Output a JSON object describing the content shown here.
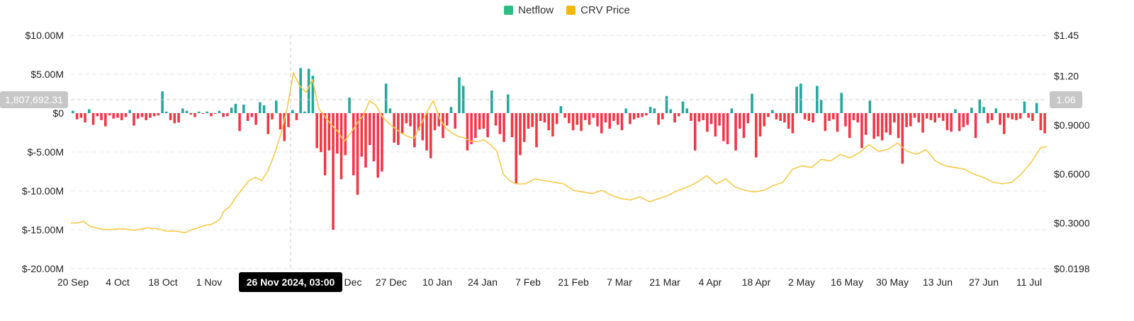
{
  "legend": {
    "netflow_label": "Netflow",
    "price_label": "CRV Price"
  },
  "colors": {
    "positive": "#26a69a",
    "negative": "#f23645",
    "price": "#f7c948",
    "legend_netflow": "#2ebd85",
    "legend_price": "#f0b90b",
    "grid": "#e6e6e6",
    "crosshair": "#c8c8c8"
  },
  "crosshair": {
    "date_label": "26 Nov 2024, 03:00",
    "left_value": "1,807,692.31",
    "right_value": "1.06"
  },
  "chart_data": {
    "type": "bar+line",
    "series": [
      {
        "name": "Netflow",
        "type": "bar",
        "unit": "USD",
        "x_start": "2024-09-20",
        "x_end": "2025-07-14",
        "values": [
          0.3,
          -0.8,
          -0.6,
          -1.2,
          0.5,
          -1.5,
          -0.4,
          -0.9,
          -1.7,
          -0.3,
          -0.7,
          -0.6,
          -0.9,
          -0.5,
          0.4,
          -1.6,
          -0.7,
          -0.5,
          -0.9,
          -0.6,
          -0.4,
          -0.3,
          2.8,
          0.2,
          -0.9,
          -1.3,
          -1.2,
          0.6,
          0.3,
          -0.2,
          -0.5,
          0.2,
          -0.1,
          0.2,
          -0.4,
          -0.1,
          0.3,
          -0.5,
          -0.4,
          0.7,
          1.2,
          -2.3,
          1.1,
          -1.0,
          -0.5,
          -1.5,
          1.4,
          1.0,
          -2.7,
          -0.8,
          1.6,
          -2.1,
          -3.6,
          -1.8,
          0.4,
          -0.9,
          5.8,
          0.2,
          5.7,
          4.8,
          -4.5,
          -5.0,
          -8.0,
          -4.8,
          -15.0,
          -5.2,
          -8.5,
          -5.4,
          2.0,
          -8.0,
          -10.5,
          -5.6,
          -7.0,
          -4.1,
          -6.2,
          -8.3,
          -7.5,
          3.8,
          0.6,
          -3.8,
          -4.1,
          -2.6,
          -1.3,
          -1.7,
          -4.4,
          -2.2,
          -3.5,
          -4.8,
          -5.8,
          -2.2,
          -1.7,
          -3.2,
          -1.6,
          0.8,
          -2.0,
          4.6,
          3.5,
          -4.8,
          -4.0,
          -3.2,
          -2.1,
          -2.0,
          -3.1,
          2.9,
          -1.6,
          -2.7,
          -3.7,
          2.4,
          -3.1,
          -9.0,
          -5.4,
          -3.7,
          -2.0,
          -1.8,
          -4.4,
          -1.0,
          -1.2,
          -2.2,
          -3.0,
          -1.4,
          0.9,
          -0.6,
          -1.3,
          -2.2,
          -1.5,
          -2.3,
          -0.9,
          -1.5,
          -0.6,
          -1.7,
          -2.6,
          -1.2,
          -2.0,
          -1.0,
          -1.5,
          -2.2,
          0.6,
          -1.4,
          -0.8,
          -0.6,
          -0.5,
          -0.3,
          0.8,
          0.6,
          -1.5,
          -0.8,
          2.2,
          0.5,
          -1.2,
          -0.4,
          1.5,
          0.6,
          -1.0,
          -4.8,
          -1.1,
          -0.9,
          -2.4,
          -1.4,
          -3.0,
          -1.6,
          -3.6,
          -4.0,
          0.6,
          -4.8,
          -2.0,
          -3.2,
          -1.3,
          2.5,
          -5.7,
          -3.0,
          -1.7,
          -0.5,
          0.4,
          -0.8,
          -1.0,
          -1.2,
          -2.0,
          -2.6,
          3.4,
          3.8,
          -0.8,
          -1.0,
          -1.2,
          3.5,
          1.7,
          -2.3,
          -1.0,
          -0.8,
          -2.4,
          2.6,
          -1.7,
          -3.2,
          -0.9,
          -1.2,
          -4.5,
          -2.8,
          1.6,
          -3.3,
          -3.0,
          -3.5,
          -2.5,
          -2.8,
          -1.2,
          -3.2,
          -6.5,
          -1.8,
          -1.7,
          -0.6,
          -1.2,
          -2.5,
          -0.7,
          -0.9,
          -1.2,
          -0.6,
          -1.0,
          -2.2,
          -2.4,
          0.5,
          -2.3,
          -1.8,
          -1.5,
          0.7,
          -3.2,
          1.8,
          0.8,
          -1.3,
          -0.9,
          0.6,
          -1.5,
          -2.7,
          -0.6,
          -0.8,
          -0.9,
          -0.7,
          1.5,
          -0.6,
          -1.0,
          1.3,
          -2.2,
          -2.6
        ]
      },
      {
        "name": "CRV Price",
        "type": "line",
        "unit": "USD",
        "x_start": "2024-09-20",
        "x_end": "2025-07-14",
        "points": [
          [
            0,
            0.3
          ],
          [
            2,
            0.3
          ],
          [
            4,
            0.31
          ],
          [
            6,
            0.28
          ],
          [
            8,
            0.27
          ],
          [
            10,
            0.26
          ],
          [
            13,
            0.26
          ],
          [
            16,
            0.265
          ],
          [
            20,
            0.255
          ],
          [
            24,
            0.27
          ],
          [
            27,
            0.265
          ],
          [
            30,
            0.25
          ],
          [
            33,
            0.25
          ],
          [
            36,
            0.24
          ],
          [
            38,
            0.26
          ],
          [
            40,
            0.27
          ],
          [
            42,
            0.285
          ],
          [
            44,
            0.29
          ],
          [
            46,
            0.31
          ],
          [
            47,
            0.325
          ],
          [
            48,
            0.37
          ],
          [
            50,
            0.4
          ],
          [
            52,
            0.46
          ],
          [
            54,
            0.51
          ],
          [
            56,
            0.56
          ],
          [
            58,
            0.58
          ],
          [
            60,
            0.56
          ],
          [
            62,
            0.62
          ],
          [
            64,
            0.72
          ],
          [
            66,
            0.84
          ],
          [
            68,
            1.0
          ],
          [
            70,
            1.22
          ],
          [
            72,
            1.14
          ],
          [
            74,
            1.1
          ],
          [
            76,
            1.18
          ],
          [
            78,
            1.0
          ],
          [
            80,
            0.95
          ],
          [
            82,
            0.9
          ],
          [
            84,
            0.86
          ],
          [
            86,
            0.8
          ],
          [
            88,
            0.85
          ],
          [
            90,
            0.91
          ],
          [
            92,
            0.96
          ],
          [
            94,
            1.05
          ],
          [
            96,
            1.02
          ],
          [
            98,
            0.95
          ],
          [
            100,
            0.91
          ],
          [
            102,
            0.88
          ],
          [
            104,
            0.85
          ],
          [
            106,
            0.83
          ],
          [
            108,
            0.82
          ],
          [
            110,
            0.9
          ],
          [
            112,
            0.98
          ],
          [
            114,
            1.05
          ],
          [
            116,
            0.94
          ],
          [
            118,
            0.88
          ],
          [
            120,
            0.85
          ],
          [
            122,
            0.83
          ],
          [
            124,
            0.82
          ],
          [
            126,
            0.8
          ],
          [
            128,
            0.8
          ],
          [
            130,
            0.81
          ],
          [
            132,
            0.78
          ],
          [
            134,
            0.74
          ],
          [
            136,
            0.6
          ],
          [
            138,
            0.56
          ],
          [
            140,
            0.54
          ],
          [
            143,
            0.54
          ],
          [
            146,
            0.57
          ],
          [
            149,
            0.56
          ],
          [
            152,
            0.55
          ],
          [
            155,
            0.54
          ],
          [
            158,
            0.5
          ],
          [
            161,
            0.49
          ],
          [
            164,
            0.48
          ],
          [
            167,
            0.5
          ],
          [
            170,
            0.47
          ],
          [
            173,
            0.45
          ],
          [
            176,
            0.44
          ],
          [
            179,
            0.46
          ],
          [
            182,
            0.43
          ],
          [
            185,
            0.45
          ],
          [
            188,
            0.47
          ],
          [
            191,
            0.5
          ],
          [
            194,
            0.52
          ],
          [
            197,
            0.55
          ],
          [
            200,
            0.59
          ],
          [
            203,
            0.54
          ],
          [
            206,
            0.57
          ],
          [
            209,
            0.52
          ],
          [
            212,
            0.5
          ],
          [
            215,
            0.49
          ],
          [
            218,
            0.5
          ],
          [
            221,
            0.53
          ],
          [
            224,
            0.55
          ],
          [
            227,
            0.63
          ],
          [
            230,
            0.65
          ],
          [
            233,
            0.64
          ],
          [
            236,
            0.69
          ],
          [
            239,
            0.68
          ],
          [
            242,
            0.72
          ],
          [
            245,
            0.7
          ],
          [
            248,
            0.73
          ],
          [
            251,
            0.78
          ],
          [
            254,
            0.74
          ],
          [
            257,
            0.75
          ],
          [
            260,
            0.79
          ],
          [
            263,
            0.74
          ],
          [
            266,
            0.72
          ],
          [
            269,
            0.75
          ],
          [
            272,
            0.68
          ],
          [
            275,
            0.65
          ],
          [
            278,
            0.64
          ],
          [
            281,
            0.63
          ],
          [
            284,
            0.6
          ],
          [
            287,
            0.58
          ],
          [
            290,
            0.55
          ],
          [
            293,
            0.54
          ],
          [
            296,
            0.55
          ],
          [
            299,
            0.6
          ],
          [
            302,
            0.67
          ],
          [
            305,
            0.76
          ],
          [
            307,
            0.77
          ]
        ],
        "points_x_note": "x is day index from 2024-09-20"
      }
    ],
    "x_ticks": [
      "20 Sep",
      "4 Oct",
      "18 Oct",
      "1 Nov",
      "26 Nov 2024, 03:00",
      "Dec",
      "27 Dec",
      "10 Jan",
      "24 Jan",
      "7 Feb",
      "21 Feb",
      "7 Mar",
      "21 Mar",
      "4 Apr",
      "18 Apr",
      "2 May",
      "16 May",
      "30 May",
      "13 Jun",
      "27 Jun",
      "11 Jul"
    ],
    "y_left": {
      "ticks": [
        "$10.00M",
        "$5.00M",
        "$0",
        "$-5.00M",
        "$-10.00M",
        "$-15.00M",
        "$-20.00M"
      ],
      "values": [
        10,
        5,
        0,
        -5,
        -10,
        -15,
        -20
      ],
      "ylim": [
        -20,
        10
      ]
    },
    "y_right": {
      "ticks": [
        "$1.45",
        "$1.20",
        "$0.9000",
        "$0.6000",
        "$0.3000",
        "$0.0198"
      ],
      "values": [
        1.45,
        1.2,
        0.9,
        0.6,
        0.3,
        0.0198
      ],
      "ylim": [
        0.0198,
        1.45
      ]
    },
    "grid": true,
    "legend_position": "top-center"
  }
}
